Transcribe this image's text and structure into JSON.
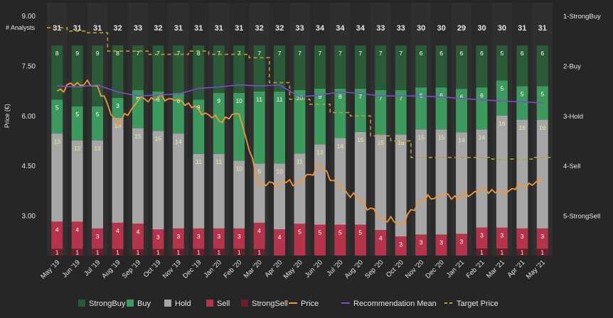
{
  "chart_data": {
    "type": "bar",
    "title": "",
    "header_label": "# Analysts",
    "xlabel": "",
    "ylabel": "Price (€)",
    "ylim": [
      1.8,
      9.4
    ],
    "yticks": [
      "3.00",
      "4.50",
      "6.00",
      "7.50",
      "9.00"
    ],
    "ytick_values": [
      3.0,
      4.5,
      6.0,
      7.5,
      9.0
    ],
    "right_axis_labels": [
      "1-StrongBuy",
      "2-Buy",
      "3-Hold",
      "4-Sell",
      "5-StrongSell"
    ],
    "right_axis_values": [
      1,
      2,
      3,
      4,
      5
    ],
    "categories": [
      "May '19",
      "Jun '19",
      "Jul '19",
      "Aug '19",
      "Sep '19",
      "Oct '19",
      "Nov '19",
      "Dec '19",
      "Jan '20",
      "Feb '20",
      "Mar '20",
      "Apr '20",
      "May '20",
      "Jun '20",
      "Jul '20",
      "Aug '20",
      "Sep '20",
      "Oct '20",
      "Nov '20",
      "Dec '20",
      "Jan '21",
      "Feb '21",
      "Mar '21",
      "Apr '21",
      "May '21"
    ],
    "analyst_counts": [
      31,
      31,
      31,
      32,
      33,
      32,
      31,
      31,
      31,
      31,
      32,
      32,
      33,
      34,
      34,
      34,
      33,
      33,
      30,
      30,
      29,
      30,
      30,
      31,
      31
    ],
    "bar_series": [
      {
        "name": "StrongSell",
        "color": "#6b1f2a",
        "values": [
          1,
          1,
          1,
          1,
          1,
          1,
          1,
          1,
          1,
          1,
          1,
          0,
          0,
          0,
          0,
          0,
          0,
          0,
          0,
          0,
          0,
          1,
          1,
          1,
          1
        ]
      },
      {
        "name": "Sell",
        "color": "#b5344b",
        "values": [
          4,
          4,
          3,
          4,
          4,
          3,
          3,
          3,
          3,
          3,
          4,
          4,
          5,
          5,
          5,
          5,
          4,
          3,
          3,
          3,
          3,
          3,
          3,
          3,
          3
        ]
      },
      {
        "name": "Hold",
        "color": "#a6a6a6",
        "values": [
          13,
          12,
          13,
          16,
          15,
          15,
          14,
          11,
          11,
          10,
          9,
          10,
          11,
          13,
          14,
          15,
          15,
          16,
          15,
          15,
          14,
          14,
          16,
          16,
          16
        ]
      },
      {
        "name": "Buy",
        "color": "#3c9a5f",
        "values": [
          5,
          5,
          5,
          3,
          6,
          6,
          6,
          8,
          9,
          10,
          11,
          11,
          10,
          9,
          8,
          7,
          7,
          7,
          6,
          6,
          6,
          6,
          5,
          5,
          5
        ]
      },
      {
        "name": "StrongBuy",
        "color": "#2a5a37",
        "values": [
          8,
          9,
          9,
          8,
          7,
          7,
          7,
          8,
          7,
          7,
          7,
          7,
          7,
          7,
          7,
          7,
          7,
          7,
          6,
          6,
          6,
          6,
          5,
          6,
          6
        ]
      }
    ],
    "line_series": [
      {
        "name": "Price",
        "color": "#f0963c",
        "values": [
          6.75,
          7.0,
          6.9,
          5.7,
          6.45,
          6.55,
          6.5,
          6.2,
          5.85,
          6.05,
          3.9,
          4.0,
          4.0,
          4.5,
          3.85,
          3.45,
          2.95,
          2.75,
          3.45,
          3.6,
          3.55,
          3.8,
          3.7,
          3.9,
          4.0
        ]
      },
      {
        "name": "Recommendation Mean",
        "color": "#7a4fc7",
        "values": [
          2.4,
          2.42,
          2.38,
          2.52,
          2.6,
          2.58,
          2.56,
          2.45,
          2.42,
          2.38,
          2.4,
          2.38,
          2.62,
          2.58,
          2.52,
          2.55,
          2.6,
          2.6,
          2.6,
          2.62,
          2.65,
          2.68,
          2.7,
          2.72,
          2.74
        ]
      },
      {
        "name": "Target Price",
        "color": "#b8a032",
        "values": [
          8.65,
          8.55,
          8.5,
          7.95,
          7.95,
          7.85,
          7.85,
          7.95,
          7.85,
          7.85,
          7.75,
          7.0,
          6.5,
          6.35,
          6.1,
          6.0,
          5.4,
          5.25,
          4.75,
          4.75,
          4.75,
          4.75,
          4.7,
          4.7,
          4.75
        ]
      }
    ],
    "legend": [
      {
        "label": "StrongBuy",
        "kind": "box",
        "color": "#2a5a37"
      },
      {
        "label": "Buy",
        "kind": "box",
        "color": "#3c9a5f"
      },
      {
        "label": "Hold",
        "kind": "box",
        "color": "#a6a6a6"
      },
      {
        "label": "Sell",
        "kind": "box",
        "color": "#b5344b"
      },
      {
        "label": "StrongSell",
        "kind": "box",
        "color": "#6b1f2a"
      },
      {
        "label": "Price",
        "kind": "line",
        "color": "#f0963c"
      },
      {
        "label": "Recommendation Mean",
        "kind": "line",
        "color": "#7a4fc7"
      },
      {
        "label": "Target Price",
        "kind": "dash",
        "color": "#b8a032"
      }
    ],
    "legend_position": "bottom"
  }
}
